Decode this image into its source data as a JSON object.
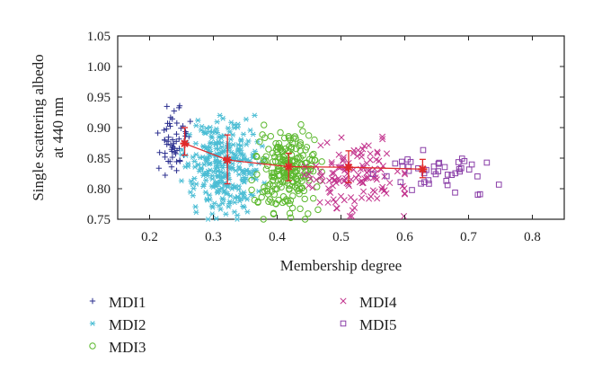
{
  "chart_data": {
    "type": "scatter",
    "xlabel": "Membership degree",
    "ylabel": [
      "Single scattering albedo",
      "at 440 nm"
    ],
    "xlim": [
      0.15,
      0.85
    ],
    "ylim": [
      0.75,
      1.05
    ],
    "xticks": [
      "0.2",
      "0.3",
      "0.4",
      "0.5",
      "0.6",
      "0.7",
      "0.8"
    ],
    "yticks": [
      "0.75",
      "0.80",
      "0.85",
      "0.90",
      "0.95",
      "1.00",
      "1.05"
    ],
    "grid": false,
    "legend_position": "below",
    "series": [
      {
        "name": "MDI1",
        "marker": "plus",
        "color": "#2b2f8f",
        "x_range": [
          0.21,
          0.265
        ],
        "y_range": [
          0.815,
          0.945
        ],
        "count": 55
      },
      {
        "name": "MDI2",
        "marker": "asterisk",
        "color": "#4bbdd4",
        "x_range": [
          0.25,
          0.38
        ],
        "y_range": [
          0.75,
          0.92
        ],
        "count": 300
      },
      {
        "name": "MDI3",
        "marker": "circle",
        "color": "#5cb82e",
        "x_range": [
          0.36,
          0.47
        ],
        "y_range": [
          0.75,
          0.905
        ],
        "count": 220
      },
      {
        "name": "MDI4",
        "marker": "x",
        "color": "#c2338d",
        "x_range": [
          0.44,
          0.6
        ],
        "y_range": [
          0.755,
          0.885
        ],
        "count": 130
      },
      {
        "name": "MDI5",
        "marker": "square",
        "color": "#8a3fa8",
        "x_range": [
          0.55,
          0.76
        ],
        "y_range": [
          0.79,
          0.865
        ],
        "count": 45
      }
    ],
    "mean_line": {
      "color": "#e02a2a",
      "points": [
        {
          "x": 0.255,
          "y": 0.874,
          "err_low": 0.855,
          "err_high": 0.9
        },
        {
          "x": 0.322,
          "y": 0.847,
          "err_low": 0.808,
          "err_high": 0.888
        },
        {
          "x": 0.418,
          "y": 0.836,
          "err_low": 0.813,
          "err_high": 0.858
        },
        {
          "x": 0.512,
          "y": 0.835,
          "err_low": 0.81,
          "err_high": 0.862
        },
        {
          "x": 0.628,
          "y": 0.832,
          "err_low": 0.818,
          "err_high": 0.848
        }
      ]
    }
  }
}
